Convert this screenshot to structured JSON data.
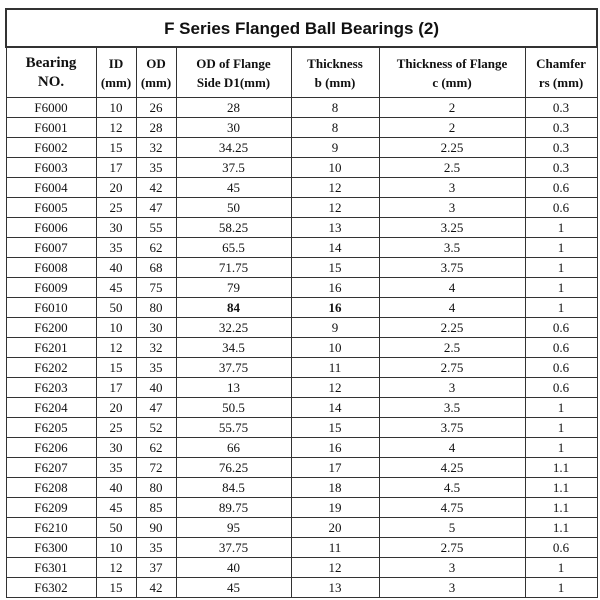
{
  "title": "F Series Flanged Ball Bearings (2)",
  "headers": [
    [
      "Bearing",
      "NO."
    ],
    [
      "ID",
      "(mm)"
    ],
    [
      "OD",
      "(mm)"
    ],
    [
      "OD of Flange",
      "Side D1(mm)"
    ],
    [
      "Thickness",
      "b (mm)"
    ],
    [
      "Thickness of  Flange",
      "c (mm)"
    ],
    [
      "Chamfer",
      "rs (mm)"
    ]
  ],
  "rows": [
    [
      "F6000",
      "10",
      "26",
      "28",
      "8",
      "2",
      "0.3"
    ],
    [
      "F6001",
      "12",
      "28",
      "30",
      "8",
      "2",
      "0.3"
    ],
    [
      "F6002",
      "15",
      "32",
      "34.25",
      "9",
      "2.25",
      "0.3"
    ],
    [
      "F6003",
      "17",
      "35",
      "37.5",
      "10",
      "2.5",
      "0.3"
    ],
    [
      "F6004",
      "20",
      "42",
      "45",
      "12",
      "3",
      "0.6"
    ],
    [
      "F6005",
      "25",
      "47",
      "50",
      "12",
      "3",
      "0.6"
    ],
    [
      "F6006",
      "30",
      "55",
      "58.25",
      "13",
      "3.25",
      "1"
    ],
    [
      "F6007",
      "35",
      "62",
      "65.5",
      "14",
      "3.5",
      "1"
    ],
    [
      "F6008",
      "40",
      "68",
      "71.75",
      "15",
      "3.75",
      "1"
    ],
    [
      "F6009",
      "45",
      "75",
      "79",
      "16",
      "4",
      "1"
    ],
    [
      "F6010",
      "50",
      "80",
      "84",
      "16",
      "4",
      "1"
    ],
    [
      "F6200",
      "10",
      "30",
      "32.25",
      "9",
      "2.25",
      "0.6"
    ],
    [
      "F6201",
      "12",
      "32",
      "34.5",
      "10",
      "2.5",
      "0.6"
    ],
    [
      "F6202",
      "15",
      "35",
      "37.75",
      "11",
      "2.75",
      "0.6"
    ],
    [
      "F6203",
      "17",
      "40",
      "13",
      "12",
      "3",
      "0.6"
    ],
    [
      "F6204",
      "20",
      "47",
      "50.5",
      "14",
      "3.5",
      "1"
    ],
    [
      "F6205",
      "25",
      "52",
      "55.75",
      "15",
      "3.75",
      "1"
    ],
    [
      "F6206",
      "30",
      "62",
      "66",
      "16",
      "4",
      "1"
    ],
    [
      "F6207",
      "35",
      "72",
      "76.25",
      "17",
      "4.25",
      "1.1"
    ],
    [
      "F6208",
      "40",
      "80",
      "84.5",
      "18",
      "4.5",
      "1.1"
    ],
    [
      "F6209",
      "45",
      "85",
      "89.75",
      "19",
      "4.75",
      "1.1"
    ],
    [
      "F6210",
      "50",
      "90",
      "95",
      "20",
      "5",
      "1.1"
    ],
    [
      "F6300",
      "10",
      "35",
      "37.75",
      "11",
      "2.75",
      "0.6"
    ],
    [
      "F6301",
      "12",
      "37",
      "40",
      "12",
      "3",
      "1"
    ],
    [
      "F6302",
      "15",
      "42",
      "45",
      "13",
      "3",
      "1"
    ]
  ]
}
